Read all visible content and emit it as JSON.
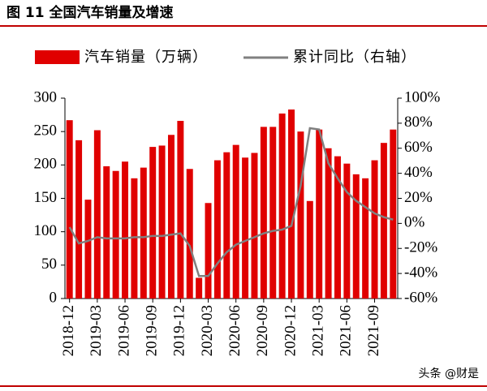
{
  "chart_data": {
    "type": "bar-line",
    "title": "图 11 全国汽车销量及增速",
    "watermark": "头条 @财是",
    "categories": [
      "2018-12",
      null,
      null,
      "2019-03",
      null,
      null,
      "2019-06",
      null,
      null,
      "2019-09",
      null,
      null,
      "2019-12",
      null,
      null,
      "2020-03",
      null,
      null,
      "2020-06",
      null,
      null,
      "2020-09",
      null,
      null,
      "2020-12",
      null,
      null,
      "2021-03",
      null,
      null,
      "2021-06",
      null,
      null,
      "2021-09",
      null,
      null
    ],
    "series": [
      {
        "name": "汽车销量（万辆）",
        "type": "bar",
        "color": "#e00000",
        "values": [
          267,
          237,
          148,
          252,
          198,
          191,
          205,
          180,
          196,
          227,
          229,
          245,
          266,
          194,
          31,
          143,
          207,
          219,
          230,
          211,
          218,
          257,
          257,
          277,
          283,
          250,
          146,
          253,
          225,
          213,
          202,
          186,
          180,
          207,
          233,
          253
        ]
      },
      {
        "name": "累计同比（右轴）",
        "type": "line",
        "axis": "y2",
        "color": "#808080",
        "values": [
          -3,
          -16,
          -14,
          -11,
          -12,
          -12,
          -12,
          -11,
          -11,
          -10,
          -10,
          -9,
          -8,
          -18,
          -42,
          -42,
          -32,
          -23,
          -17,
          -14,
          -11,
          -8,
          -6,
          -5,
          -2,
          30,
          76,
          75,
          48,
          36,
          25,
          18,
          13,
          8,
          5,
          3
        ]
      }
    ],
    "ylim": [
      0,
      300
    ],
    "yticks": [
      0,
      50,
      100,
      150,
      200,
      250,
      300
    ],
    "y2lim": [
      -60,
      100
    ],
    "y2ticks": [
      {
        "value": -60,
        "label": "-60%"
      },
      {
        "value": -40,
        "label": "-40%"
      },
      {
        "value": -20,
        "label": "-20%"
      },
      {
        "value": 0,
        "label": "0%"
      },
      {
        "value": 20,
        "label": "20%"
      },
      {
        "value": 40,
        "label": "40%"
      },
      {
        "value": 60,
        "label": "60%"
      },
      {
        "value": 80,
        "label": "80%"
      },
      {
        "value": 100,
        "label": "100%"
      }
    ]
  }
}
